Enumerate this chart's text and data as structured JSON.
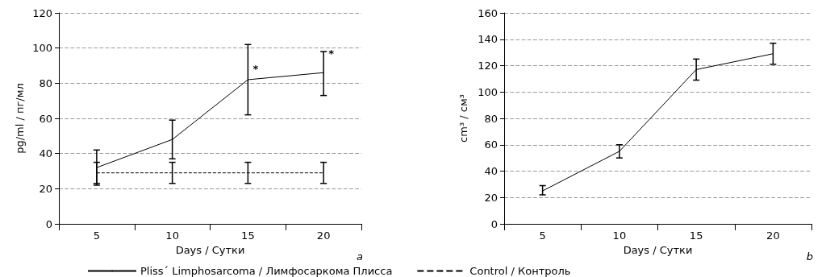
{
  "chart_data": [
    {
      "type": "line",
      "xlabel": "Days / Сутки",
      "ylabel": "pg/ml / пг/мл",
      "categories": [
        "5",
        "10",
        "15",
        "20"
      ],
      "series": [
        {
          "name": "Pliss´ Limphosarcoma / Лимфосаркома Плисса",
          "color": "#000000",
          "values": [
            32,
            48,
            82,
            86
          ],
          "errors": [
            [
              22,
              42
            ],
            [
              37,
              59
            ],
            [
              62,
              102
            ],
            [
              73,
              98
            ]
          ],
          "line_style": "solid"
        },
        {
          "name": "Control / Контроль",
          "color": "#000000",
          "values": [
            29,
            29,
            29,
            29
          ],
          "errors": [
            [
              23,
              35
            ],
            [
              23,
              35
            ],
            [
              23,
              35
            ],
            [
              23,
              35
            ]
          ],
          "line_style": "dashed"
        }
      ],
      "ylim": [
        0,
        120
      ],
      "yticks": [
        0,
        20,
        40,
        60,
        80,
        100,
        120
      ],
      "grid": "y",
      "legend": "bottom",
      "marker": "none",
      "annotations": [
        {
          "text": "*",
          "x": "15",
          "y": 88
        },
        {
          "text": "*",
          "x": "20",
          "y": 97
        },
        "a"
      ]
    },
    {
      "type": "line",
      "xlabel": "Days / Сутки",
      "ylabel": "cm³ / см³",
      "categories": [
        "5",
        "10",
        "15",
        "20"
      ],
      "series": [
        {
          "color": "#000000",
          "values": [
            25,
            55,
            117,
            129
          ],
          "errors": [
            [
              22,
              29
            ],
            [
              50,
              60
            ],
            [
              109,
              125
            ],
            [
              121,
              137
            ]
          ],
          "line_style": "solid"
        }
      ],
      "ylim": [
        0,
        160
      ],
      "yticks": [
        0,
        20,
        40,
        60,
        80,
        100,
        120,
        140,
        160
      ],
      "grid": "y",
      "legend": false,
      "marker": "none",
      "annotations": [
        "b"
      ]
    }
  ]
}
